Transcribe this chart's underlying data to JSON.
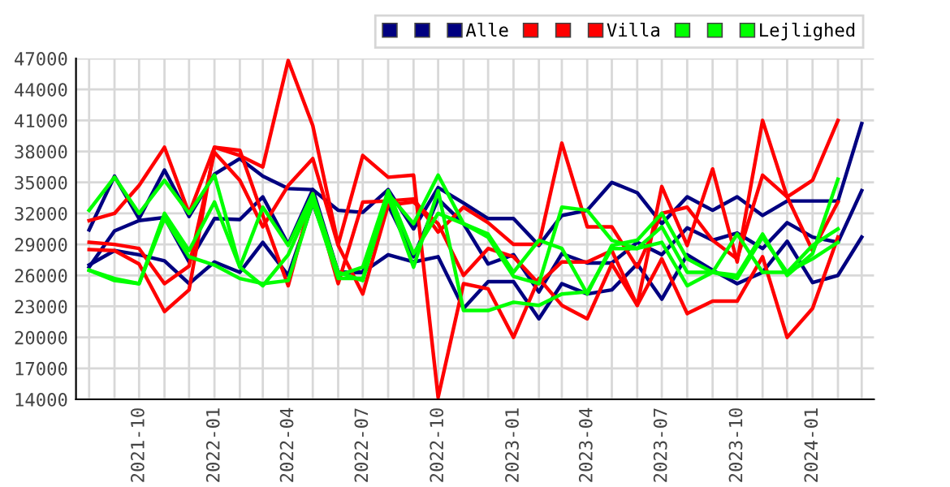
{
  "chart_data": {
    "type": "line",
    "x": [
      "2021-08",
      "2021-09",
      "2021-10",
      "2021-11",
      "2021-12",
      "2022-01",
      "2022-02",
      "2022-03",
      "2022-04",
      "2022-05",
      "2022-06",
      "2022-07",
      "2022-08",
      "2022-09",
      "2022-10",
      "2022-11",
      "2022-12",
      "2023-01",
      "2023-02",
      "2023-03",
      "2023-04",
      "2023-05",
      "2023-06",
      "2023-07",
      "2023-08",
      "2023-09",
      "2023-10",
      "2023-11",
      "2023-12",
      "2024-01",
      "2024-02",
      "2024-03"
    ],
    "series": [
      {
        "color": "#000080",
        "values": [
          30400,
          35600,
          31500,
          36200,
          31700,
          35800,
          37300,
          35600,
          34400,
          34300,
          32300,
          32100,
          34300,
          30500,
          34500,
          33000,
          31500,
          31500,
          28900,
          31800,
          32300,
          35000,
          34000,
          31000,
          33600,
          32300,
          33600,
          31800,
          33200,
          33200,
          33200,
          40700
        ]
      },
      {
        "color": "#000080",
        "values": [
          26800,
          30300,
          31300,
          31600,
          27300,
          31500,
          31400,
          33600,
          29000,
          34300,
          26300,
          26300,
          32800,
          27800,
          33400,
          31000,
          27100,
          28000,
          24400,
          28100,
          27200,
          27200,
          29200,
          28000,
          30600,
          29400,
          30100,
          28600,
          31100,
          29700,
          29200,
          34200
        ]
      },
      {
        "name": "Alle",
        "color": "#000080",
        "values": [
          27000,
          28400,
          28000,
          27400,
          25200,
          27300,
          26300,
          29200,
          26000,
          33000,
          26300,
          26300,
          28000,
          27300,
          27800,
          22800,
          25400,
          25400,
          21800,
          25200,
          24200,
          24600,
          27100,
          23700,
          28000,
          26500,
          25200,
          26300,
          29300,
          25300,
          26000,
          29700
        ]
      },
      {
        "color": "#ff0000",
        "values": [
          31300,
          32000,
          34700,
          38400,
          32000,
          38400,
          37600,
          36500,
          46800,
          40500,
          29000,
          37600,
          35500,
          35700,
          14200,
          25200,
          24700,
          20000,
          25700,
          23100,
          21800,
          27100,
          23100,
          27600,
          22300,
          23500,
          23500,
          27800,
          20000,
          22800,
          29700,
          null
        ]
      },
      {
        "color": "#ff0000",
        "values": [
          29200,
          29000,
          28600,
          25200,
          26900,
          37900,
          35200,
          30700,
          34700,
          37300,
          28900,
          24200,
          32800,
          33100,
          31000,
          26000,
          28600,
          27800,
          25200,
          27300,
          27300,
          28400,
          23100,
          34600,
          28900,
          36300,
          27300,
          41000,
          33600,
          28400,
          33100,
          null
        ]
      },
      {
        "name": "Villa",
        "color": "#ff0000",
        "values": [
          28500,
          28400,
          27100,
          22500,
          24600,
          38400,
          38100,
          31800,
          25000,
          33900,
          25200,
          33100,
          33200,
          33400,
          30200,
          32600,
          31100,
          29000,
          29000,
          38800,
          30700,
          30700,
          26800,
          32000,
          32600,
          29400,
          27600,
          35700,
          33600,
          35200,
          41000,
          null
        ]
      },
      {
        "color": "#00ff00",
        "values": [
          32300,
          35500,
          32000,
          35200,
          32000,
          35700,
          26800,
          32600,
          28900,
          33900,
          26300,
          25500,
          33900,
          31000,
          35700,
          31000,
          30000,
          26300,
          29400,
          28600,
          24200,
          28900,
          29400,
          32000,
          27600,
          26300,
          26000,
          30000,
          26000,
          28100,
          35300,
          null
        ]
      },
      {
        "color": "#00ff00",
        "values": [
          26500,
          25700,
          25200,
          32000,
          28400,
          33100,
          26800,
          25000,
          28000,
          33400,
          26000,
          26800,
          34200,
          28100,
          32000,
          31000,
          29700,
          25900,
          25200,
          32600,
          32300,
          29400,
          28600,
          30700,
          26300,
          26300,
          30000,
          26300,
          26300,
          28900,
          30500,
          null
        ]
      },
      {
        "name": "Lejlighed",
        "color": "#00ff00",
        "values": [
          26500,
          25500,
          25200,
          31500,
          27800,
          27000,
          25700,
          25200,
          25500,
          33100,
          25700,
          25700,
          33600,
          26800,
          34200,
          22600,
          22600,
          23400,
          23100,
          24200,
          24400,
          28600,
          28600,
          29200,
          25000,
          26300,
          25700,
          29700,
          26300,
          27600,
          29200,
          null
        ]
      }
    ],
    "xlim": [
      "2021-07-16",
      "2024-03-16"
    ],
    "xticks": [
      {
        "value": "2021-08",
        "label": null
      },
      {
        "value": "2021-09",
        "label": null
      },
      {
        "value": "2021-10",
        "label": "2021-10"
      },
      {
        "value": "2021-11",
        "label": null
      },
      {
        "value": "2021-12",
        "label": null
      },
      {
        "value": "2022-01",
        "label": "2022-01"
      },
      {
        "value": "2022-02",
        "label": null
      },
      {
        "value": "2022-03",
        "label": null
      },
      {
        "value": "2022-04",
        "label": "2022-04"
      },
      {
        "value": "2022-05",
        "label": null
      },
      {
        "value": "2022-06",
        "label": null
      },
      {
        "value": "2022-07",
        "label": "2022-07"
      },
      {
        "value": "2022-08",
        "label": null
      },
      {
        "value": "2022-09",
        "label": null
      },
      {
        "value": "2022-10",
        "label": "2022-10"
      },
      {
        "value": "2022-11",
        "label": null
      },
      {
        "value": "2022-12",
        "label": null
      },
      {
        "value": "2023-01",
        "label": "2023-01"
      },
      {
        "value": "2023-02",
        "label": null
      },
      {
        "value": "2023-03",
        "label": null
      },
      {
        "value": "2023-04",
        "label": "2023-04"
      },
      {
        "value": "2023-05",
        "label": null
      },
      {
        "value": "2023-06",
        "label": null
      },
      {
        "value": "2023-07",
        "label": "2023-07"
      },
      {
        "value": "2023-08",
        "label": null
      },
      {
        "value": "2023-09",
        "label": null
      },
      {
        "value": "2023-10",
        "label": "2023-10"
      },
      {
        "value": "2023-11",
        "label": null
      },
      {
        "value": "2023-12",
        "label": null
      },
      {
        "value": "2024-01",
        "label": "2024-01"
      },
      {
        "value": "2024-02",
        "label": null
      },
      {
        "value": "2024-03",
        "label": null
      }
    ],
    "ylim": [
      14000,
      47000
    ],
    "yticks": [
      14000,
      17000,
      20000,
      23000,
      26000,
      29000,
      32000,
      35000,
      38000,
      41000,
      44000,
      47000
    ],
    "grid": true,
    "legend": "top right",
    "marker": "none",
    "line_style": "solid"
  }
}
